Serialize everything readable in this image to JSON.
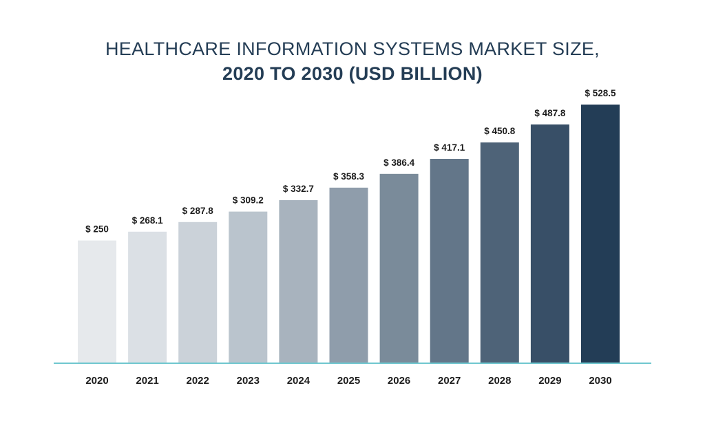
{
  "chart_data": {
    "type": "bar",
    "title": "HEALTHCARE INFORMATION SYSTEMS MARKET SIZE,",
    "subtitle": "2020 TO 2030 (USD BILLION)",
    "categories": [
      "2020",
      "2021",
      "2022",
      "2023",
      "2024",
      "2025",
      "2026",
      "2027",
      "2028",
      "2029",
      "2030"
    ],
    "values": [
      250,
      268.1,
      287.8,
      309.2,
      332.7,
      358.3,
      386.4,
      417.1,
      450.8,
      487.8,
      528.5
    ],
    "value_labels": [
      "$ 250",
      "$ 268.1",
      "$ 287.8",
      "$ 309.2",
      "$ 332.7",
      "$ 358.3",
      "$ 386.4",
      "$ 417.1",
      "$ 450.8",
      "$ 487.8",
      "$ 528.5"
    ],
    "bar_colors": [
      "#e6e9ec",
      "#dbe0e5",
      "#cbd2d9",
      "#bac4cd",
      "#a8b3be",
      "#8f9dab",
      "#7a8b9a",
      "#637689",
      "#4e6378",
      "#384f67",
      "#233d56"
    ],
    "axis_line_color": "#6fc7cf",
    "xlabel": "",
    "ylabel": "",
    "grid": false,
    "legend": "none"
  }
}
